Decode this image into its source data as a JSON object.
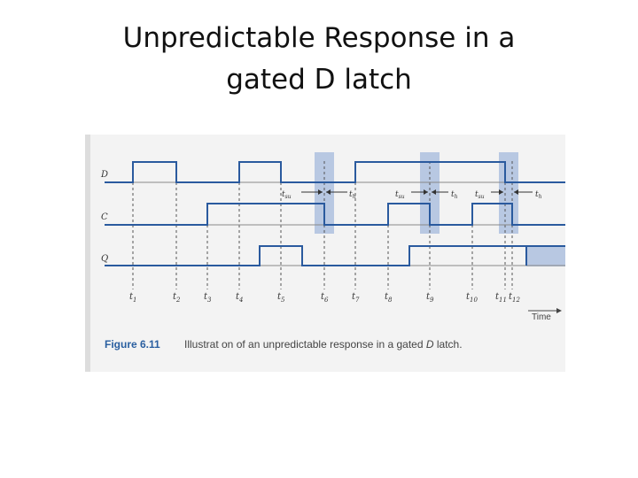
{
  "title": {
    "line1": "Unpredictable Response in a",
    "line2": "gated D latch"
  },
  "figure": {
    "signals": {
      "d": "D",
      "c": "C",
      "q": "Q"
    },
    "times": [
      {
        "base": "t",
        "sub": "1"
      },
      {
        "base": "t",
        "sub": "2"
      },
      {
        "base": "t",
        "sub": "3"
      },
      {
        "base": "t",
        "sub": "4"
      },
      {
        "base": "t",
        "sub": "5"
      },
      {
        "base": "t",
        "sub": "6"
      },
      {
        "base": "t",
        "sub": "7"
      },
      {
        "base": "t",
        "sub": "8"
      },
      {
        "base": "t",
        "sub": "9"
      },
      {
        "base": "t",
        "sub": "10"
      },
      {
        "base": "t",
        "sub": "11"
      },
      {
        "base": "t",
        "sub": "12"
      }
    ],
    "setup_hold": [
      {
        "su": "su",
        "h": "h"
      },
      {
        "su": "su",
        "h": "h"
      },
      {
        "su": "su",
        "h": "h"
      }
    ],
    "time_axis_label": "Time",
    "caption_number": "Figure 6.11",
    "caption_text_a": "Illustrat on of an unpredictable response in a gated ",
    "caption_text_it": "D",
    "caption_text_b": " latch.",
    "colors": {
      "waveform": "#2a5a9e",
      "highlight": "#b8c8e2",
      "dashed": "#555555"
    }
  }
}
